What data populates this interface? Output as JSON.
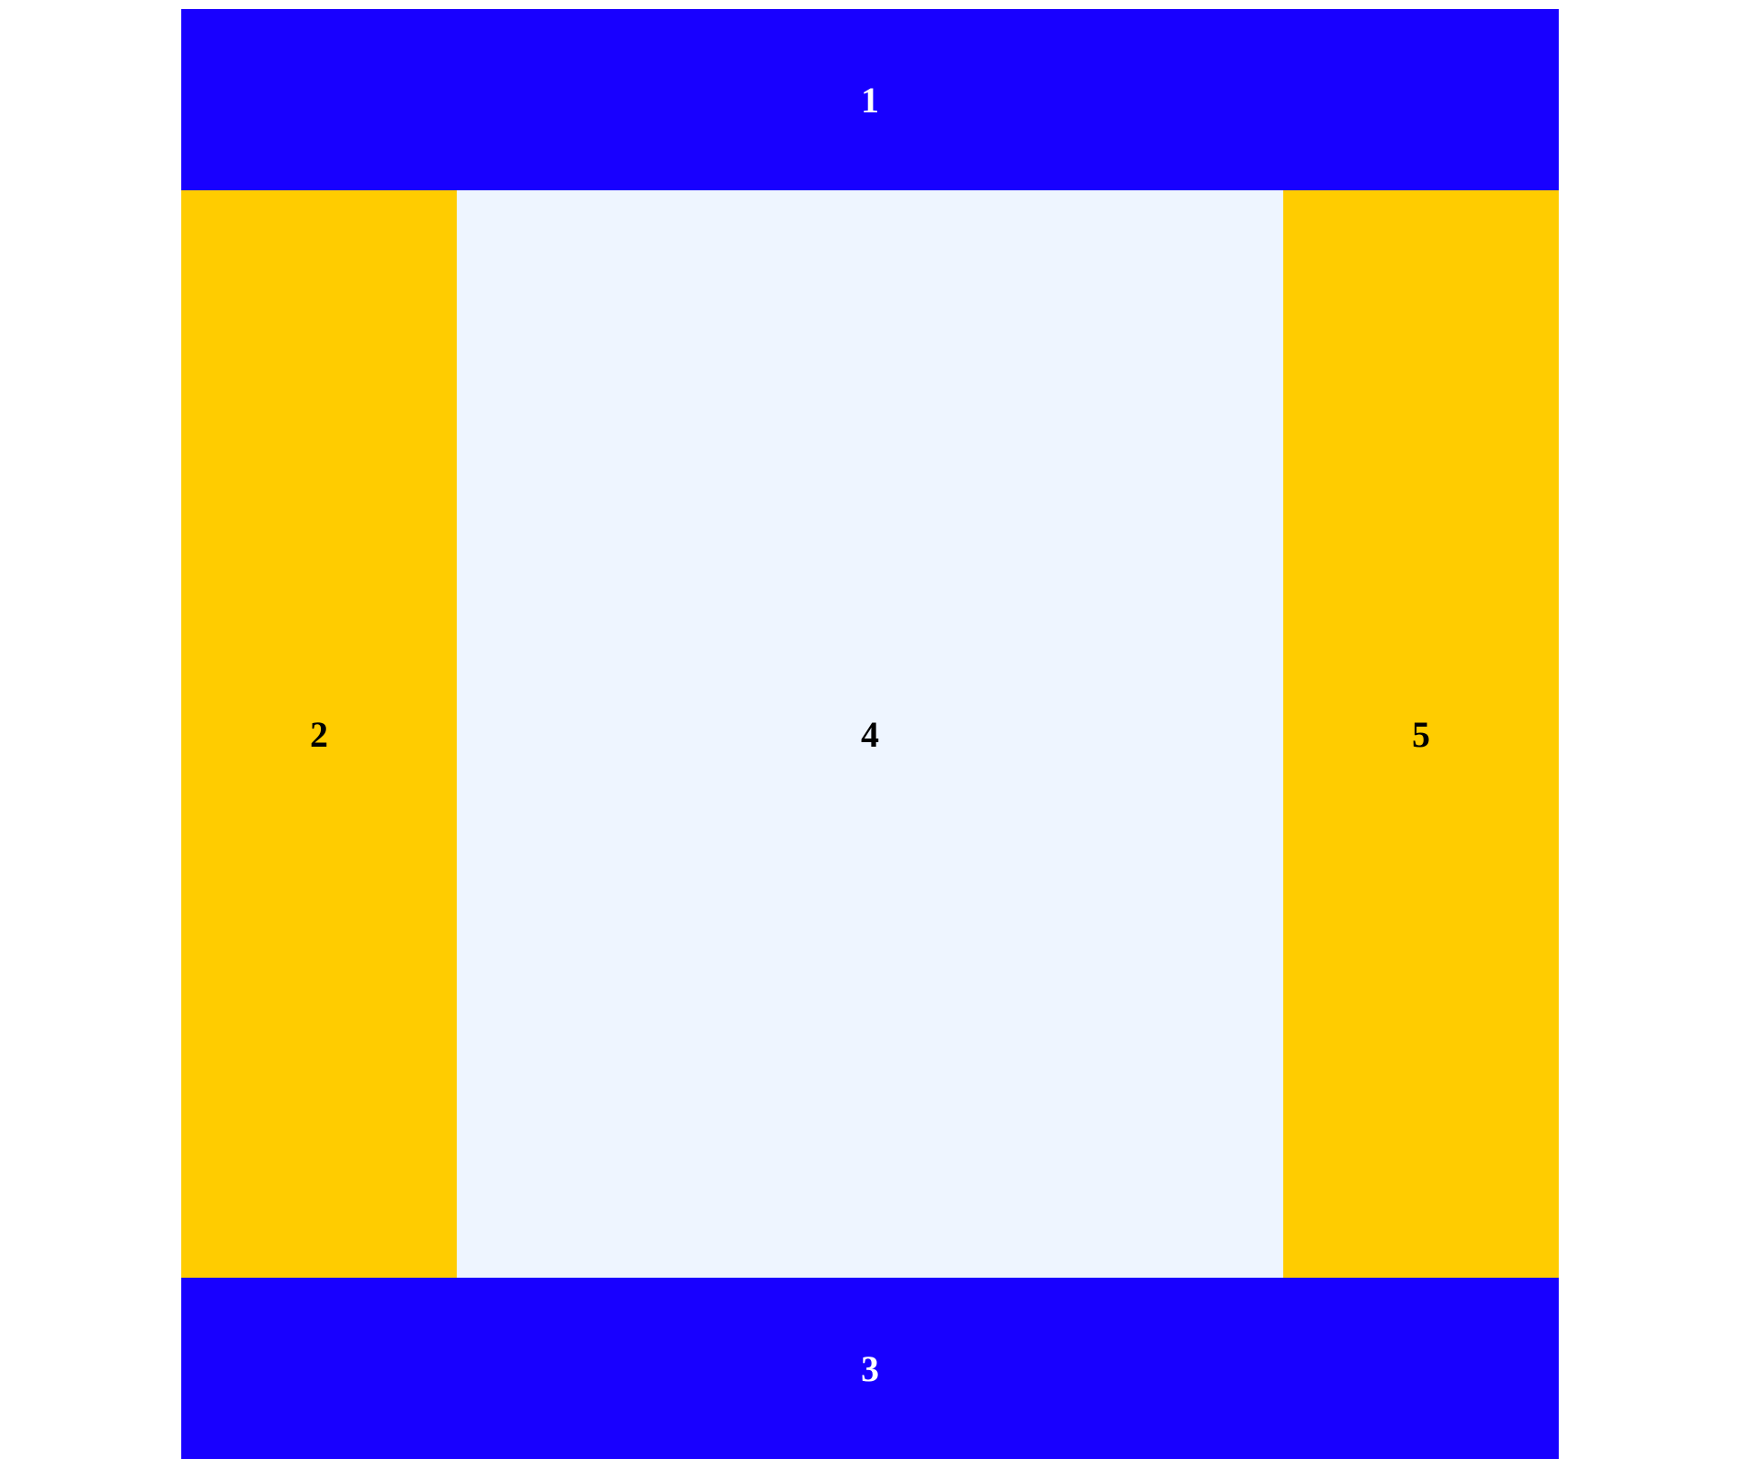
{
  "regions": {
    "top": {
      "label": "1",
      "color": "#1800ff"
    },
    "left": {
      "label": "2",
      "color": "#ffcc00"
    },
    "bottom": {
      "label": "3",
      "color": "#1800ff"
    },
    "center": {
      "label": "4",
      "color": "#eef5ff"
    },
    "right": {
      "label": "5",
      "color": "#ffcc00"
    }
  }
}
